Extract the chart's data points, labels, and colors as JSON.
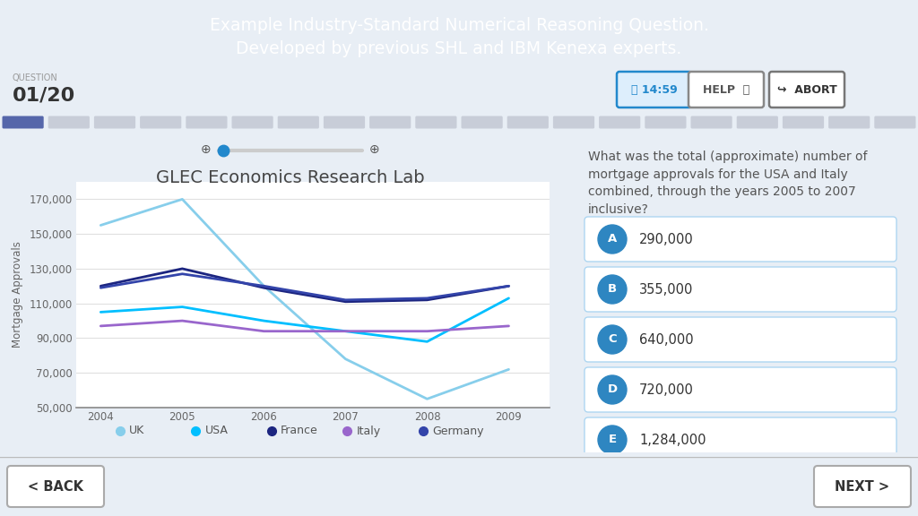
{
  "title": "GLEC Economics Research Lab",
  "ylabel": "Mortgage Approvals",
  "years": [
    2004,
    2005,
    2006,
    2007,
    2008,
    2009
  ],
  "series": {
    "UK": [
      155000,
      170000,
      120000,
      78000,
      55000,
      72000
    ],
    "USA": [
      105000,
      108000,
      100000,
      94000,
      88000,
      113000
    ],
    "France": [
      120000,
      130000,
      119000,
      111000,
      112000,
      120000
    ],
    "Italy": [
      97000,
      100000,
      94000,
      94000,
      94000,
      97000
    ],
    "Germany": [
      119000,
      127000,
      120000,
      112000,
      113000,
      120000
    ]
  },
  "colors": {
    "UK": "#87CEEB",
    "USA": "#00BFFF",
    "France": "#1C2580",
    "Italy": "#9966CC",
    "Germany": "#3344AA"
  },
  "ylim": [
    50000,
    180000
  ],
  "yticks": [
    50000,
    70000,
    90000,
    110000,
    130000,
    150000,
    170000
  ],
  "header_bg": "#29BCEC",
  "header_text_line1": "Example Industry-Standard Numerical Reasoning Question.",
  "header_text_line2": "Developed by previous SHL and IBM Kenexa experts.",
  "subheader_bg": "#EEF4FB",
  "question_label": "QUESTION",
  "question_number": "01/20",
  "timer_text": "⧖ 14:59",
  "help_text": "HELP  ⓘ",
  "abort_text": "↪  ABORT",
  "outer_bg": "#E8EEF5",
  "question_text": "What was the total (approximate) number of\nmortgage approvals for the USA and Italy\ncombined, through the years 2005 to 2007\ninclusive?",
  "options": [
    {
      "label": "A",
      "value": "290,000"
    },
    {
      "label": "B",
      "value": "355,000"
    },
    {
      "label": "C",
      "value": "640,000"
    },
    {
      "label": "D",
      "value": "720,000"
    },
    {
      "label": "E",
      "value": "1,284,000"
    }
  ],
  "option_circle_color": "#2E86C1",
  "option_border_color": "#AED6F1",
  "back_btn_text": "< BACK",
  "next_btn_text": "NEXT >",
  "progress_filled": 1,
  "progress_total": 20
}
